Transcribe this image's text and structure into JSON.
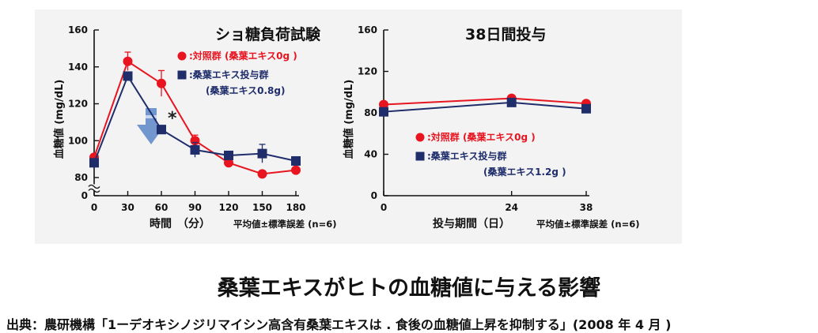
{
  "caption": {
    "main": "桑葉エキスがヒトの血糖値に与える影響",
    "source": "出典：農研機構「1ーデオキシノジリマイシン高含有桑葉エキスは . 食後の血糖値上昇を抑制する」(2008 年 4 月 )"
  },
  "colors": {
    "control": "#e8141f",
    "treatment": "#1f2d6b",
    "arrow": "#5a86c8",
    "panel": "#f3f3f3"
  },
  "chart_data": [
    {
      "type": "line",
      "title": "ショ糖負荷試験",
      "xlabel": "時間　（分）",
      "ylabel": "血糖値 (mg/dL)",
      "note": "平均値±標準誤差 (n=6)",
      "x": [
        0,
        30,
        60,
        90,
        120,
        150,
        180
      ],
      "x_ticks": [
        "0",
        "30",
        "60",
        "90",
        "120",
        "150",
        "180"
      ],
      "y_ticks": [
        "0",
        "80",
        "100",
        "120",
        "140",
        "160"
      ],
      "ylim": [
        80,
        160
      ],
      "y_break": true,
      "annotation": "*",
      "series": [
        {
          "name": ":対照群 (桑葉エキス0g )",
          "sub": "",
          "role": "control",
          "values": [
            91,
            143,
            131,
            100,
            88,
            82,
            84
          ],
          "errors": [
            0,
            5,
            7,
            3,
            0,
            0,
            0
          ]
        },
        {
          "name": ":桑葉エキス投与群",
          "sub": "(桑葉エキス0.8g)",
          "role": "treatment",
          "values": [
            88,
            135,
            106,
            95,
            92,
            93,
            89
          ],
          "errors": [
            0,
            0,
            0,
            4,
            0,
            5,
            0
          ]
        }
      ]
    },
    {
      "type": "line",
      "title": "38日間投与",
      "xlabel": "投与期間（日）",
      "ylabel": "血糖値 (mg/dL)",
      "note": "平均値±標準誤差 (n=6)",
      "x": [
        0,
        24,
        38
      ],
      "x_ticks": [
        "0",
        "24",
        "38"
      ],
      "y_ticks": [
        "0",
        "40",
        "80",
        "120",
        "160"
      ],
      "ylim": [
        0,
        160
      ],
      "y_break": false,
      "annotation": "",
      "series": [
        {
          "name": ":対照群 (桑葉エキス0g )",
          "sub": "",
          "role": "control",
          "values": [
            88,
            94,
            89
          ],
          "errors": [
            0,
            0,
            0
          ]
        },
        {
          "name": ":桑葉エキス投与群",
          "sub": "(桑葉エキス1.2g )",
          "role": "treatment",
          "values": [
            81,
            90,
            84
          ],
          "errors": [
            0,
            0,
            0
          ]
        }
      ]
    }
  ]
}
